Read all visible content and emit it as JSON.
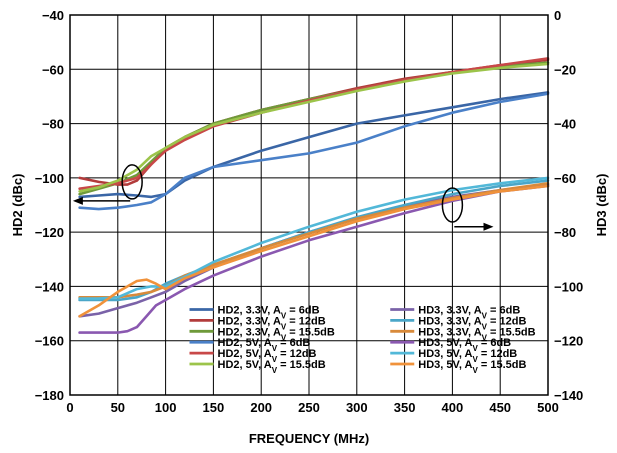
{
  "chart_data": {
    "type": "line",
    "xlabel": "FREQUENCY (MHz)",
    "ylabel": "HD2 (dBc)",
    "y2label": "HD3 (dBc)",
    "xlim": [
      0,
      500
    ],
    "ylim": [
      -180,
      -40
    ],
    "y2lim": [
      -140,
      0
    ],
    "grid": true,
    "x_ticks": [
      "0",
      "50",
      "100",
      "150",
      "200",
      "250",
      "300",
      "350",
      "400",
      "450",
      "500"
    ],
    "y_ticks": [
      "−40",
      "−60",
      "−80",
      "−100",
      "−120",
      "−140",
      "−160",
      "−180"
    ],
    "y2_ticks": [
      "0",
      "−20",
      "−40",
      "−60",
      "−80",
      "−100",
      "−120",
      "−140"
    ],
    "legend_placement": "bottom-right",
    "series": [
      {
        "legend": "HD2, 3.3V, AV = 6dB",
        "name_prefix": "HD2, 3.3V, A",
        "sub": "V",
        "name_suffix": " = 6dB",
        "axis": "left",
        "color": "#3a66a6",
        "x": [
          10,
          30,
          50,
          70,
          85,
          100,
          120,
          150,
          200,
          250,
          300,
          350,
          400,
          450,
          500
        ],
        "y": [
          -107,
          -106.5,
          -106,
          -106.5,
          -107,
          -106,
          -101,
          -96,
          -90,
          -85,
          -80,
          -77,
          -74,
          -71,
          -68.5
        ]
      },
      {
        "legend": "HD2, 3.3V, AV = 12dB",
        "name_prefix": "HD2, 3.3V, A",
        "sub": "V",
        "name_suffix": " = 12dB",
        "axis": "left",
        "color": "#b23b3b",
        "x": [
          10,
          30,
          50,
          60,
          70,
          80,
          90,
          100,
          120,
          150,
          200,
          250,
          300,
          350,
          400,
          450,
          500
        ],
        "y": [
          -100,
          -101.5,
          -102.5,
          -102.5,
          -101,
          -97,
          -93,
          -89,
          -85,
          -80,
          -75,
          -71,
          -67,
          -63.5,
          -61,
          -58.5,
          -56.5
        ]
      },
      {
        "legend": "HD2, 3.3V, AV = 15.5dB",
        "name_prefix": "HD2, 3.3V, A",
        "sub": "V",
        "name_suffix": " = 15.5dB",
        "axis": "left",
        "color": "#6f9a3a",
        "x": [
          10,
          30,
          50,
          70,
          85,
          100,
          120,
          150,
          200,
          250,
          300,
          350,
          400,
          450,
          500
        ],
        "y": [
          -106,
          -104,
          -102,
          -99,
          -94,
          -89,
          -85,
          -80,
          -75,
          -71,
          -67.5,
          -64,
          -61,
          -59,
          -57.5
        ]
      },
      {
        "legend": "HD2, 5V, AV = 6dB",
        "name_prefix": "HD2, 5V, A",
        "sub": "V",
        "name_suffix": " = 6dB",
        "axis": "left",
        "color": "#4a80c8",
        "x": [
          10,
          30,
          50,
          70,
          85,
          100,
          120,
          150,
          200,
          250,
          300,
          350,
          400,
          450,
          500
        ],
        "y": [
          -111,
          -111.5,
          -111,
          -110,
          -109,
          -106,
          -100,
          -96,
          -93.5,
          -91,
          -87,
          -81,
          -76,
          -72,
          -69
        ]
      },
      {
        "legend": "HD2, 5V, AV = 12dB",
        "name_prefix": "HD2, 5V, A",
        "sub": "V",
        "name_suffix": " = 12dB",
        "axis": "left",
        "color": "#c84848",
        "x": [
          10,
          30,
          50,
          70,
          85,
          100,
          120,
          150,
          200,
          250,
          300,
          350,
          400,
          450,
          500
        ],
        "y": [
          -104,
          -103,
          -102,
          -100,
          -95,
          -90,
          -86,
          -81,
          -76,
          -71.5,
          -67.5,
          -64,
          -61,
          -58.5,
          -56
        ]
      },
      {
        "legend": "HD2, 5V, AV = 15.5dB",
        "name_prefix": "HD2, 5V, A",
        "sub": "V",
        "name_suffix": " = 15.5dB",
        "axis": "left",
        "color": "#9cc44a",
        "x": [
          10,
          30,
          50,
          70,
          85,
          100,
          120,
          150,
          200,
          250,
          300,
          350,
          400,
          450,
          500
        ],
        "y": [
          -105,
          -103.5,
          -101,
          -97,
          -92,
          -89,
          -85,
          -80.5,
          -76,
          -72,
          -68,
          -64.5,
          -61.5,
          -59.5,
          -58
        ]
      },
      {
        "legend": "HD3, 3.3V, AV = 6dB",
        "name_prefix": "HD3, 3.3V, A",
        "sub": "V",
        "name_suffix": " = 6dB",
        "axis": "right",
        "color": "#7a62a8",
        "x": [
          10,
          30,
          50,
          70,
          85,
          100,
          120,
          150,
          200,
          250,
          300,
          350,
          400,
          450,
          500
        ],
        "y": [
          -111,
          -110,
          -108,
          -106,
          -104,
          -102,
          -98,
          -93,
          -86,
          -80,
          -75,
          -70.5,
          -67,
          -64.5,
          -62.5
        ]
      },
      {
        "legend": "HD3, 3.3V, AV = 12dB",
        "name_prefix": "HD3, 3.3V, A",
        "sub": "V",
        "name_suffix": " = 12dB",
        "axis": "right",
        "color": "#4aa6c8",
        "x": [
          10,
          30,
          50,
          70,
          85,
          100,
          120,
          150,
          200,
          250,
          300,
          350,
          400,
          450,
          500
        ],
        "y": [
          -105,
          -105,
          -105,
          -104,
          -102,
          -99,
          -96,
          -92,
          -86,
          -80,
          -74.5,
          -70,
          -66,
          -63,
          -61
        ]
      },
      {
        "legend": "HD3, 3.3V, AV = 15.5dB",
        "name_prefix": "HD3, 3.3V, A",
        "sub": "V",
        "name_suffix": " = 15.5dB",
        "axis": "right",
        "color": "#d88a3a",
        "x": [
          10,
          30,
          50,
          70,
          85,
          100,
          120,
          150,
          200,
          250,
          300,
          350,
          400,
          450,
          500
        ],
        "y": [
          -104,
          -104,
          -104,
          -103,
          -102,
          -100,
          -96,
          -92,
          -86,
          -80.5,
          -75,
          -71,
          -67.5,
          -64.5,
          -62
        ]
      },
      {
        "legend": "HD3, 5V, AV = 6dB",
        "name_prefix": "HD3, 5V, A",
        "sub": "V",
        "name_suffix": " = 6dB",
        "axis": "right",
        "color": "#8a58b0",
        "x": [
          10,
          30,
          50,
          60,
          70,
          80,
          90,
          100,
          120,
          150,
          200,
          250,
          300,
          350,
          400,
          450,
          500
        ],
        "y": [
          -117,
          -117,
          -117,
          -116.5,
          -115,
          -111,
          -107,
          -105,
          -101,
          -96,
          -89,
          -83,
          -78,
          -73,
          -68.5,
          -65,
          -63
        ]
      },
      {
        "legend": "HD3, 5V, AV = 12dB",
        "name_prefix": "HD3, 5V, A",
        "sub": "V",
        "name_suffix": " = 12dB",
        "axis": "right",
        "color": "#52b8d8",
        "x": [
          10,
          30,
          50,
          70,
          85,
          100,
          120,
          150,
          200,
          250,
          300,
          350,
          400,
          450,
          500
        ],
        "y": [
          -104.5,
          -104.5,
          -104,
          -101,
          -100,
          -100,
          -96.5,
          -91,
          -84,
          -78,
          -72.5,
          -68,
          -64.5,
          -62,
          -60
        ]
      },
      {
        "legend": "HD3, 5V, AV = 15.5dB",
        "name_prefix": "HD3, 5V, A",
        "sub": "V",
        "name_suffix": " = 15.5dB",
        "axis": "right",
        "color": "#f0923a",
        "x": [
          10,
          30,
          50,
          70,
          80,
          90,
          100,
          120,
          150,
          200,
          250,
          300,
          350,
          400,
          450,
          500
        ],
        "y": [
          -111,
          -107,
          -102,
          -98,
          -97.5,
          -99,
          -101,
          -97,
          -93,
          -87,
          -81.5,
          -76,
          -71.5,
          -68,
          -65,
          -63
        ]
      }
    ]
  }
}
